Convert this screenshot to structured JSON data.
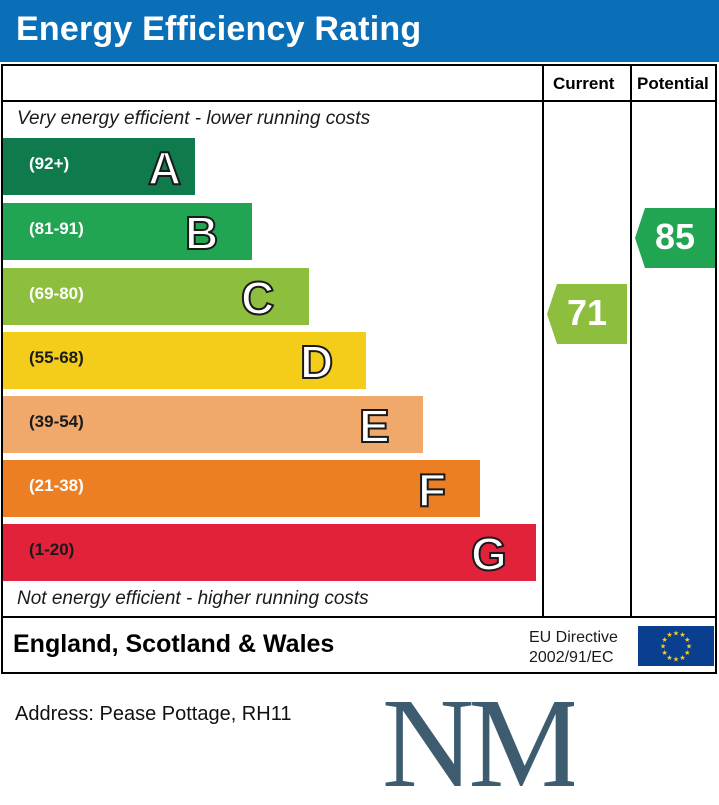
{
  "header": {
    "title": "Energy Efficiency Rating"
  },
  "columns": {
    "current": "Current",
    "potential": "Potential"
  },
  "captions": {
    "top": "Very energy efficient - lower running costs",
    "bottom": "Not energy efficient - higher running costs"
  },
  "bands": [
    {
      "letter": "A",
      "range": "(92+)",
      "color": "#0f7b4d"
    },
    {
      "letter": "B",
      "range": "(81-91)",
      "color": "#21a552"
    },
    {
      "letter": "C",
      "range": "(69-80)",
      "color": "#8dbe3e"
    },
    {
      "letter": "D",
      "range": "(55-68)",
      "color": "#f4cd1b"
    },
    {
      "letter": "E",
      "range": "(39-54)",
      "color": "#f0a96b"
    },
    {
      "letter": "F",
      "range": "(21-38)",
      "color": "#ec7f24"
    },
    {
      "letter": "G",
      "range": "(1-20)",
      "color": "#e2213b"
    }
  ],
  "ratings": {
    "current": {
      "value": "71",
      "band": "C",
      "color": "#8dbe3e"
    },
    "potential": {
      "value": "85",
      "band": "B",
      "color": "#21a552"
    }
  },
  "footer": {
    "country": "England, Scotland & Wales",
    "directive_line1": "EU Directive",
    "directive_line2": "2002/91/EC"
  },
  "address": "Address: Pease Pottage, RH11",
  "logo": {
    "text": "NM",
    "color": "#3d5c70"
  }
}
